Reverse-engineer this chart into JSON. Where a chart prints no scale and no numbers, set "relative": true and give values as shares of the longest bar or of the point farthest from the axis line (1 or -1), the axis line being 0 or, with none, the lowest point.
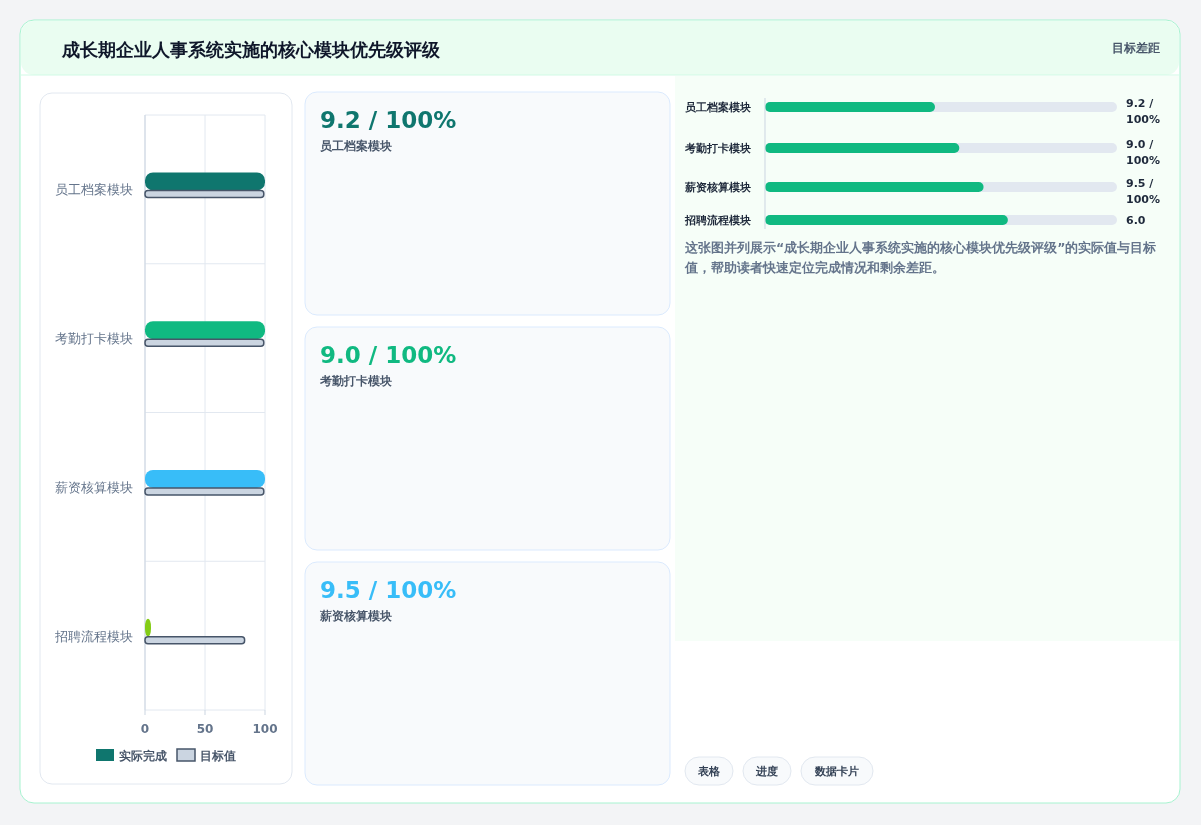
{
  "chart_data": [
    {
      "type": "other",
      "title": "成长期企业人事系统实施的核心模块优先级评级",
      "annotations": [
        "目标差距"
      ]
    },
    {
      "type": "bar",
      "orientation": "horizontal",
      "categories": [
        "员工档案模块",
        "考勤打卡模块",
        "薪资核算模块",
        "招聘流程模块"
      ],
      "series": [
        {
          "name": "实际完成",
          "colors": [
            "#0f766e",
            "#10b981",
            "#38bdf8",
            "#84cc16"
          ],
          "values": [
            100,
            100,
            100,
            5
          ]
        },
        {
          "name": "目标值",
          "color": "#cbd5e1",
          "values": [
            99,
            99,
            99,
            83
          ]
        }
      ],
      "xlim": [
        0,
        100
      ],
      "xticks": [
        0,
        50,
        100
      ],
      "grid": true,
      "legend": "bottom"
    },
    {
      "type": "other",
      "annotations": [
        "9.2 / 100%",
        "员工档案模块",
        "9.0 / 100%",
        "考勤打卡模块",
        "9.5 / 100%",
        "薪资核算模块"
      ],
      "colors": [
        "#0f766e",
        "#10b981",
        "#38bdf8"
      ]
    },
    {
      "type": "bar",
      "orientation": "horizontal",
      "relative": true,
      "categories": [
        "员工档案模块",
        "考勤打卡模块",
        "薪资核算模块",
        "招聘流程模块"
      ],
      "values": [
        0.7,
        0.8,
        0.9,
        1.0
      ],
      "color": "#10b981",
      "annotations": [
        "9.2 / 100%",
        "9.0 / 100%",
        "9.5 / 100%",
        "6.0",
        "这张图并列展示“成长期企业人事系统实施的核心模块优先级评级”的实际值与目标值，帮助读者快速定位完成情况和剩余差距。"
      ]
    },
    {
      "type": "other",
      "annotations": [
        "表格",
        "进度",
        "数据卡片"
      ]
    }
  ]
}
